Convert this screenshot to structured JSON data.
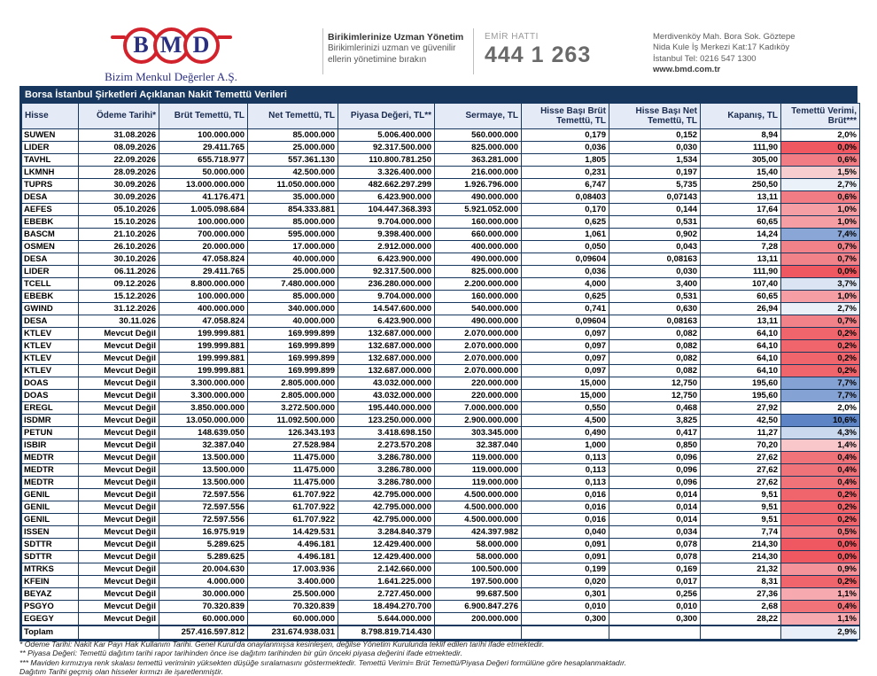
{
  "header": {
    "logo_letters": [
      "B",
      "M",
      "D"
    ],
    "company_name": "Bizim Menkul Değerler A.Ş.",
    "slogan_title": "Birikimlerinize Uzman Yönetim",
    "slogan_line1": "Birikimlerinizi uzman ve güvenilir",
    "slogan_line2": "ellerin yönetimine bırakın",
    "order_line_label": "EMİR HATTI",
    "order_line_number": "444 1 263",
    "address_line1": "Merdivenköy Mah. Bora Sok. Göztepe",
    "address_line2": "Nida Kule İş Merkezi Kat:17 Kadıköy",
    "address_line3": "İstanbul   Tel: 0216 547 1300",
    "website": "www.bmd.com.tr"
  },
  "table": {
    "title": "Borsa İstanbul Şirketleri Açıklanan Nakit Temettü Verileri",
    "columns": [
      "Hisse",
      "Ödeme Tarihi*",
      "Brüt Temettü, TL",
      "Net Temettü, TL",
      "Piyasa Değeri, TL**",
      "Sermaye, TL",
      "Hisse Başı Brüt Temettü, TL",
      "Hisse Başı Net Temettü, TL",
      "Kapanış, TL",
      "Temettü Verimi, Brüt***"
    ],
    "rows": [
      [
        "SUWEN",
        "31.08.2026",
        "100.000.000",
        "85.000.000",
        "5.006.400.000",
        "560.000.000",
        "0,179",
        "0,152",
        "8,94",
        "2,0%",
        "#FFFFFF"
      ],
      [
        "LIDER",
        "08.09.2026",
        "29.411.765",
        "25.000.000",
        "92.317.500.000",
        "825.000.000",
        "0,036",
        "0,030",
        "111,90",
        "0,0%",
        "#EF5860"
      ],
      [
        "TAVHL",
        "22.09.2026",
        "655.718.977",
        "557.361.130",
        "110.800.781.250",
        "363.281.000",
        "1,805",
        "1,534",
        "305,00",
        "0,6%",
        "#F27C83"
      ],
      [
        "LKMNH",
        "28.09.2026",
        "50.000.000",
        "42.500.000",
        "3.326.400.000",
        "216.000.000",
        "0,231",
        "0,197",
        "15,40",
        "1,5%",
        "#F8CDD0"
      ],
      [
        "TUPRS",
        "30.09.2026",
        "13.000.000.000",
        "11.050.000.000",
        "482.662.297.299",
        "1.926.796.000",
        "6,747",
        "5,735",
        "250,50",
        "2,7%",
        "#EBF1F9"
      ],
      [
        "DESA",
        "30.09.2026",
        "41.176.471",
        "35.000.000",
        "6.423.900.000",
        "490.000.000",
        "0,08403",
        "0,07143",
        "13,11",
        "0,6%",
        "#F27C83"
      ],
      [
        "AEFES",
        "05.10.2026",
        "1.005.098.684",
        "854.333.881",
        "104.447.368.393",
        "5.921.052.000",
        "0,170",
        "0,144",
        "17,64",
        "1,0%",
        "#F59FA4"
      ],
      [
        "EBEBK",
        "15.10.2026",
        "100.000.000",
        "85.000.000",
        "9.704.000.000",
        "160.000.000",
        "0,625",
        "0,531",
        "60,65",
        "1,0%",
        "#F59FA4"
      ],
      [
        "BASCM",
        "21.10.2026",
        "700.000.000",
        "595.000.000",
        "9.398.400.000",
        "660.000.000",
        "1,061",
        "0,902",
        "14,24",
        "7,4%",
        "#8AA6D6"
      ],
      [
        "OSMEN",
        "26.10.2026",
        "20.000.000",
        "17.000.000",
        "2.912.000.000",
        "400.000.000",
        "0,050",
        "0,043",
        "7,28",
        "0,7%",
        "#F28289"
      ],
      [
        "DESA",
        "30.10.2026",
        "47.058.824",
        "40.000.000",
        "6.423.900.000",
        "490.000.000",
        "0,09604",
        "0,08163",
        "13,11",
        "0,7%",
        "#F28289"
      ],
      [
        "LIDER",
        "06.11.2026",
        "29.411.765",
        "25.000.000",
        "92.317.500.000",
        "825.000.000",
        "0,036",
        "0,030",
        "111,90",
        "0,0%",
        "#EF5860"
      ],
      [
        "TCELL",
        "09.12.2026",
        "8.800.000.000",
        "7.480.000.000",
        "236.280.000.000",
        "2.200.000.000",
        "4,000",
        "3,400",
        "107,40",
        "3,7%",
        "#DAE4F3"
      ],
      [
        "EBEBK",
        "15.12.2026",
        "100.000.000",
        "85.000.000",
        "9.704.000.000",
        "160.000.000",
        "0,625",
        "0,531",
        "60,65",
        "1,0%",
        "#F59FA4"
      ],
      [
        "GWIND",
        "31.12.2026",
        "400.000.000",
        "340.000.000",
        "14.547.600.000",
        "540.000.000",
        "0,741",
        "0,630",
        "26,94",
        "2,7%",
        "#EBF1F9"
      ],
      [
        "DESA",
        "30.11.026",
        "47.058.824",
        "40.000.000",
        "6.423.900.000",
        "490.000.000",
        "0,09604",
        "0,08163",
        "13,11",
        "0,7%",
        "#F28289"
      ],
      [
        "KTLEV",
        "Mevcut Değil",
        "199.999.881",
        "169.999.899",
        "132.687.000.000",
        "2.070.000.000",
        "0,097",
        "0,082",
        "64,10",
        "0,2%",
        "#F0646B"
      ],
      [
        "KTLEV",
        "Mevcut Değil",
        "199.999.881",
        "169.999.899",
        "132.687.000.000",
        "2.070.000.000",
        "0,097",
        "0,082",
        "64,10",
        "0,2%",
        "#F0646B"
      ],
      [
        "KTLEV",
        "Mevcut Değil",
        "199.999.881",
        "169.999.899",
        "132.687.000.000",
        "2.070.000.000",
        "0,097",
        "0,082",
        "64,10",
        "0,2%",
        "#F0646B"
      ],
      [
        "KTLEV",
        "Mevcut Değil",
        "199.999.881",
        "169.999.899",
        "132.687.000.000",
        "2.070.000.000",
        "0,097",
        "0,082",
        "64,10",
        "0,2%",
        "#F0646B"
      ],
      [
        "DOAS",
        "Mevcut Değil",
        "3.300.000.000",
        "2.805.000.000",
        "43.032.000.000",
        "220.000.000",
        "15,000",
        "12,750",
        "195,60",
        "7,7%",
        "#85A2D4"
      ],
      [
        "DOAS",
        "Mevcut Değil",
        "3.300.000.000",
        "2.805.000.000",
        "43.032.000.000",
        "220.000.000",
        "15,000",
        "12,750",
        "195,60",
        "7,7%",
        "#85A2D4"
      ],
      [
        "EREGL",
        "Mevcut Değil",
        "3.850.000.000",
        "3.272.500.000",
        "195.440.000.000",
        "7.000.000.000",
        "0,550",
        "0,468",
        "27,92",
        "2,0%",
        "#FDFDFE"
      ],
      [
        "ISDMR",
        "Mevcut Değil",
        "13.050.000.000",
        "11.092.500.000",
        "123.250.000.000",
        "2.900.000.000",
        "4,500",
        "3,825",
        "42,50",
        "10,6%",
        "#5D85C5"
      ],
      [
        "PETUN",
        "Mevcut Değil",
        "148.639.050",
        "126.343.193",
        "3.418.698.150",
        "303.345.000",
        "0,490",
        "0,417",
        "11,27",
        "4,3%",
        "#CBD9EE"
      ],
      [
        "ISBIR",
        "Mevcut Değil",
        "32.387.040",
        "27.528.984",
        "2.273.570.208",
        "32.387.040",
        "1,000",
        "0,850",
        "70,20",
        "1,4%",
        "#F9C6CA"
      ],
      [
        "MEDTR",
        "Mevcut Değil",
        "13.500.000",
        "11.475.000",
        "3.286.780.000",
        "119.000.000",
        "0,113",
        "0,096",
        "27,62",
        "0,4%",
        "#F1737A"
      ],
      [
        "MEDTR",
        "Mevcut Değil",
        "13.500.000",
        "11.475.000",
        "3.286.780.000",
        "119.000.000",
        "0,113",
        "0,096",
        "27,62",
        "0,4%",
        "#F1737A"
      ],
      [
        "MEDTR",
        "Mevcut Değil",
        "13.500.000",
        "11.475.000",
        "3.286.780.000",
        "119.000.000",
        "0,113",
        "0,096",
        "27,62",
        "0,4%",
        "#F1737A"
      ],
      [
        "GENIL",
        "Mevcut Değil",
        "72.597.556",
        "61.707.922",
        "42.795.000.000",
        "4.500.000.000",
        "0,016",
        "0,014",
        "9,51",
        "0,2%",
        "#F0646B"
      ],
      [
        "GENIL",
        "Mevcut Değil",
        "72.597.556",
        "61.707.922",
        "42.795.000.000",
        "4.500.000.000",
        "0,016",
        "0,014",
        "9,51",
        "0,2%",
        "#F0646B"
      ],
      [
        "GENIL",
        "Mevcut Değil",
        "72.597.556",
        "61.707.922",
        "42.795.000.000",
        "4.500.000.000",
        "0,016",
        "0,014",
        "9,51",
        "0,2%",
        "#F0646B"
      ],
      [
        "ISSEN",
        "Mevcut Değil",
        "16.975.919",
        "14.429.531",
        "3.284.840.379",
        "424.397.982",
        "0,040",
        "0,034",
        "7,74",
        "0,5%",
        "#F2787F"
      ],
      [
        "SDTTR",
        "Mevcut Değil",
        "5.289.625",
        "4.496.181",
        "12.429.400.000",
        "58.000.000",
        "0,091",
        "0,078",
        "214,30",
        "0,0%",
        "#EF5860"
      ],
      [
        "SDTTR",
        "Mevcut Değil",
        "5.289.625",
        "4.496.181",
        "12.429.400.000",
        "58.000.000",
        "0,091",
        "0,078",
        "214,30",
        "0,0%",
        "#EF5860"
      ],
      [
        "MTRKS",
        "Mevcut Değil",
        "20.004.630",
        "17.003.936",
        "2.142.660.000",
        "100.500.000",
        "0,199",
        "0,169",
        "21,32",
        "0,9%",
        "#F49399"
      ],
      [
        "KFEIN",
        "Mevcut Değil",
        "4.000.000",
        "3.400.000",
        "1.641.225.000",
        "197.500.000",
        "0,020",
        "0,017",
        "8,31",
        "0,2%",
        "#F0646B"
      ],
      [
        "BEYAZ",
        "Mevcut Değil",
        "30.000.000",
        "25.500.000",
        "2.727.450.000",
        "99.687.500",
        "0,301",
        "0,256",
        "27,36",
        "1,1%",
        "#F6A9AE"
      ],
      [
        "PSGYO",
        "Mevcut Değil",
        "70.320.839",
        "70.320.839",
        "18.494.270.700",
        "6.900.847.276",
        "0,010",
        "0,010",
        "2,68",
        "0,4%",
        "#F1737A"
      ],
      [
        "EGEGY",
        "Mevcut Değil",
        "60.000.000",
        "60.000.000",
        "5.644.000.000",
        "200.000.000",
        "0,300",
        "0,300",
        "28,22",
        "1,1%",
        "#F6A9AE"
      ]
    ],
    "total": {
      "label": "Toplam",
      "gross": "257.416.597.812",
      "net": "231.674.938.031",
      "market_value": "8.798.819.714.430",
      "yield": "2,9%",
      "yield_color": "#E9EFF8"
    }
  },
  "footnotes": [
    "* Ödeme Tarihi: Nakit Kar Payı Hak Kullanım Tarihi. Genel Kurul'da onaylanmışsa kesinleşen, değilse Yönetim Kurulunda teklif edilen tarihi ifade etmektedir.",
    "** Piyasa Değeri: Temettü dağıtım tarihi rapor tarihinden önce ise dağıtım tarihinden bir gün önceki piyasa değerini ifade etmektedir.",
    "*** Maviden kırmızıya renk skalası temettü veriminin yüksekten düşüğe sıralamasını göstermektedir. Temettü Verimi= Brüt Temettü/Piyasa Değeri formülüne göre hesaplanmaktadır.",
    "Dağıtım Tarihi geçmiş olan hisseler kırmızı ile işaretlenmiştir."
  ],
  "colors": {
    "table_border": "#17375e",
    "title_bar_bg": "#17375e",
    "header_row_bg": "#e4ebf6",
    "logo_red": "#d2232d",
    "logo_navy": "#2b2f80",
    "yield_scale_low": "#EF5860",
    "yield_scale_high": "#5D85C5"
  }
}
